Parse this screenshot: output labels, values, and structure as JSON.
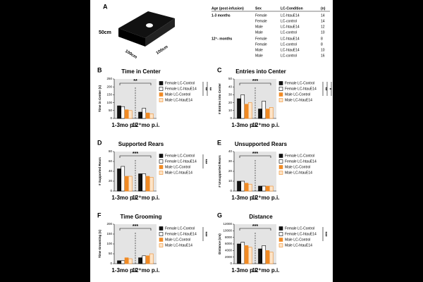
{
  "panel_a": {
    "letter": "A",
    "dims": [
      "50cm",
      "100cm",
      "100cm"
    ],
    "table": {
      "header": [
        "Age (post-infusion)",
        "Sex",
        "LC-Condition",
        "(n)"
      ],
      "groups": [
        {
          "label": "1-3 months",
          "rows": [
            [
              "Female",
              "LC-htauE14",
              14
            ],
            [
              "Female",
              "LC-control",
              14
            ],
            [
              "Male",
              "LC-htauE14",
              12
            ],
            [
              "Male",
              "LC-control",
              10
            ]
          ]
        },
        {
          "label": "12⁺- months",
          "rows": [
            [
              "Female",
              "LC-htauE14",
              8
            ],
            [
              "Female",
              "LC-control",
              8
            ],
            [
              "Male",
              "LC-htauE14",
              10
            ],
            [
              "Male",
              "LC-control",
              16
            ]
          ]
        }
      ]
    }
  },
  "chart_data": [
    {
      "type": "bar",
      "letter": "B",
      "title": "Time in Center",
      "y_label": "Time in Center (s)",
      "categories": [
        "1-3mo p.i.",
        "12⁺mo p.i."
      ],
      "series": [
        {
          "name": "Female LC-Control",
          "color": "#111111",
          "edgecolor": "#000000",
          "values": [
            80,
            40
          ]
        },
        {
          "name": "Female LC-htauE14",
          "color": "#ffffff",
          "edgecolor": "#000000",
          "values": [
            75,
            65
          ]
        },
        {
          "name": "Male LC-Control",
          "color": "#f08a24",
          "edgecolor": "#f08a24",
          "values": [
            55,
            35
          ]
        },
        {
          "name": "Male LC-htauE14",
          "color": "#fde4c8",
          "edgecolor": "#f08a24",
          "values": [
            50,
            30
          ]
        }
      ],
      "ylim": [
        0,
        250
      ],
      "yticks": [
        0,
        50,
        100,
        150,
        200,
        250
      ],
      "annotations": [
        "**",
        "**",
        "**"
      ]
    },
    {
      "type": "bar",
      "letter": "C",
      "title": "Entries into Center",
      "y_label": "# Entries into Center",
      "categories": [
        "1-3mo p.i.",
        "12⁺mo p.i."
      ],
      "series": [
        {
          "name": "Female LC-Control",
          "color": "#111111",
          "edgecolor": "#000000",
          "values": [
            25,
            12
          ]
        },
        {
          "name": "Female LC-htauE14",
          "color": "#ffffff",
          "edgecolor": "#000000",
          "values": [
            30,
            22
          ]
        },
        {
          "name": "Male LC-Control",
          "color": "#f08a24",
          "edgecolor": "#f08a24",
          "values": [
            18,
            12
          ]
        },
        {
          "name": "Male LC-htauE14",
          "color": "#fde4c8",
          "edgecolor": "#f08a24",
          "values": [
            20,
            14
          ]
        }
      ],
      "ylim": [
        0,
        50
      ],
      "yticks": [
        0,
        10,
        20,
        30,
        40,
        50
      ],
      "annotations": [
        "***",
        "**",
        "*",
        "***"
      ]
    },
    {
      "type": "bar",
      "letter": "D",
      "title": "Supported Rears",
      "y_label": "# Supported Rears",
      "categories": [
        "1-3mo p.i.",
        "12⁺mo p.i."
      ],
      "series": [
        {
          "name": "Female LC-Control",
          "color": "#111111",
          "edgecolor": "#000000",
          "values": [
            45,
            35
          ]
        },
        {
          "name": "Female LC-htauE14",
          "color": "#ffffff",
          "edgecolor": "#000000",
          "values": [
            50,
            35
          ]
        },
        {
          "name": "Male LC-Control",
          "color": "#f08a24",
          "edgecolor": "#f08a24",
          "values": [
            30,
            30
          ]
        },
        {
          "name": "Male LC-htauE14",
          "color": "#fde4c8",
          "edgecolor": "#f08a24",
          "values": [
            30,
            28
          ]
        }
      ],
      "ylim": [
        0,
        80
      ],
      "yticks": [
        0,
        20,
        40,
        60,
        80
      ],
      "annotations": [
        "***",
        "***"
      ]
    },
    {
      "type": "bar",
      "letter": "E",
      "title": "Unsupported Rears",
      "y_label": "# Unsupported Rears",
      "categories": [
        "1-3mo p.i.",
        "12⁺mo p.i."
      ],
      "series": [
        {
          "name": "Female LC-Control",
          "color": "#111111",
          "edgecolor": "#000000",
          "values": [
            10,
            5
          ]
        },
        {
          "name": "Female LC-htauE14",
          "color": "#ffffff",
          "edgecolor": "#000000",
          "values": [
            10,
            5
          ]
        },
        {
          "name": "Male LC-Control",
          "color": "#f08a24",
          "edgecolor": "#f08a24",
          "values": [
            8,
            5
          ]
        },
        {
          "name": "Male LC-htauE14",
          "color": "#fde4c8",
          "edgecolor": "#f08a24",
          "values": [
            7,
            5
          ]
        }
      ],
      "ylim": [
        0,
        40
      ],
      "yticks": [
        0,
        10,
        20,
        30,
        40
      ],
      "annotations": [
        "***"
      ]
    },
    {
      "type": "bar",
      "letter": "F",
      "title": "Time Grooming",
      "y_label": "Time Grooming (s)",
      "categories": [
        "1-3mo p.i.",
        "12⁺mo p.i."
      ],
      "series": [
        {
          "name": "Female LC-Control",
          "color": "#111111",
          "edgecolor": "#000000",
          "values": [
            15,
            30
          ]
        },
        {
          "name": "Female LC-htauE14",
          "color": "#ffffff",
          "edgecolor": "#000000",
          "values": [
            15,
            40
          ]
        },
        {
          "name": "Male LC-Control",
          "color": "#f08a24",
          "edgecolor": "#f08a24",
          "values": [
            30,
            40
          ]
        },
        {
          "name": "Male LC-htauE14",
          "color": "#fde4c8",
          "edgecolor": "#f08a24",
          "values": [
            25,
            50
          ]
        }
      ],
      "ylim": [
        0,
        200
      ],
      "yticks": [
        0,
        50,
        100,
        150,
        200
      ],
      "annotations": [
        "***",
        "***"
      ]
    },
    {
      "type": "bar",
      "letter": "G",
      "title": "Distance",
      "y_label": "Distance (cm)",
      "categories": [
        "1-3mo p.i.",
        "12⁺mo p.i."
      ],
      "series": [
        {
          "name": "Female LC-Control",
          "color": "#111111",
          "edgecolor": "#000000",
          "values": [
            6000,
            4500
          ]
        },
        {
          "name": "Female LC-htauE14",
          "color": "#ffffff",
          "edgecolor": "#000000",
          "values": [
            6500,
            5500
          ]
        },
        {
          "name": "Male LC-Control",
          "color": "#f08a24",
          "edgecolor": "#f08a24",
          "values": [
            5500,
            4000
          ]
        },
        {
          "name": "Male LC-htauE14",
          "color": "#fde4c8",
          "edgecolor": "#f08a24",
          "values": [
            5000,
            3500
          ]
        }
      ],
      "ylim": [
        0,
        12000
      ],
      "yticks": [
        0,
        2000,
        4000,
        6000,
        8000,
        10000,
        12000
      ],
      "annotations": [
        "***",
        "***"
      ]
    }
  ]
}
